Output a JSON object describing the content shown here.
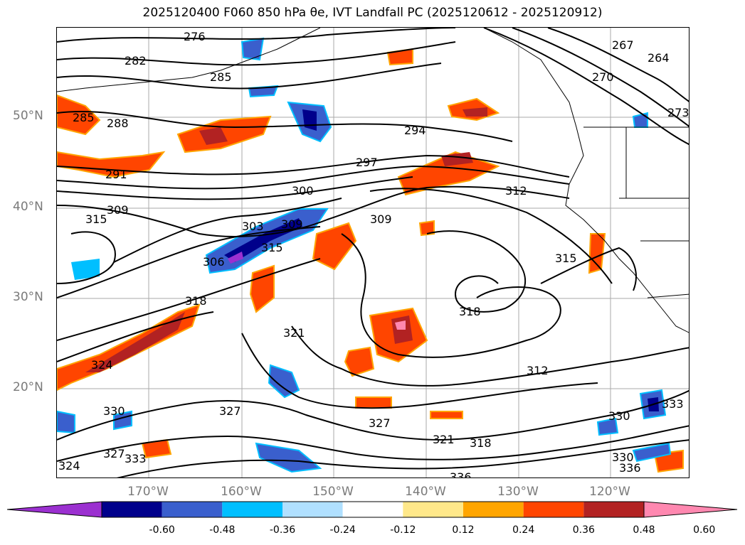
{
  "title": "2025120400 F060 850 hPa θe, IVT Landfall PC (2025120612 - 2025120912)",
  "lat_labels": [
    "50°N",
    "40°N",
    "30°N",
    "20°N"
  ],
  "lon_labels": [
    "170°W",
    "160°W",
    "150°W",
    "140°W",
    "130°W",
    "120°W"
  ],
  "contour_labels": [
    "276",
    "282",
    "285",
    "288",
    "285",
    "291",
    "294",
    "297",
    "300",
    "303",
    "306",
    "309",
    "309",
    "309",
    "312",
    "312",
    "315",
    "315",
    "315",
    "318",
    "318",
    "318",
    "321",
    "321",
    "324",
    "324",
    "327",
    "327",
    "327",
    "330",
    "330",
    "330",
    "333",
    "333",
    "336",
    "336",
    "264",
    "267",
    "270",
    "273"
  ],
  "colorbar": {
    "ticks": [
      "-0.60",
      "-0.48",
      "-0.36",
      "-0.24",
      "-0.12",
      "0.12",
      "0.24",
      "0.36",
      "0.48",
      "0.60"
    ],
    "colors": [
      "#9b30d0",
      "#00008b",
      "#3a5fcd",
      "#00bfff",
      "#b0e0ff",
      "#ffffff",
      "#ffe88a",
      "#ffa500",
      "#ff4500",
      "#b22222",
      "#ff88b0"
    ]
  }
}
